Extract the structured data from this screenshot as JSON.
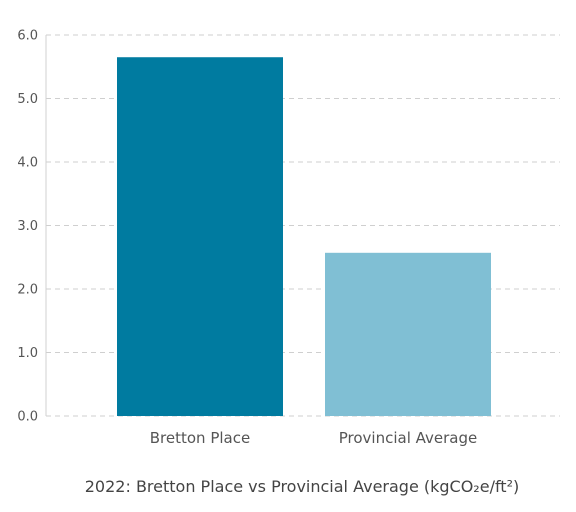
{
  "chart_data": {
    "type": "bar",
    "title": "2022: Bretton Place vs Provincial Average (kgCO₂e/ft²)",
    "xlabel": "",
    "ylabel": "",
    "categories": [
      "Bretton Place",
      "Provincial Average"
    ],
    "values": [
      5.65,
      2.57
    ],
    "colors": [
      "#007ba0",
      "#80bfd4"
    ],
    "ylim": [
      0,
      6
    ],
    "yticks": [
      "0.0",
      "1.0",
      "2.0",
      "3.0",
      "4.0",
      "5.0",
      "6.0"
    ],
    "grid": true,
    "legend": "none"
  }
}
